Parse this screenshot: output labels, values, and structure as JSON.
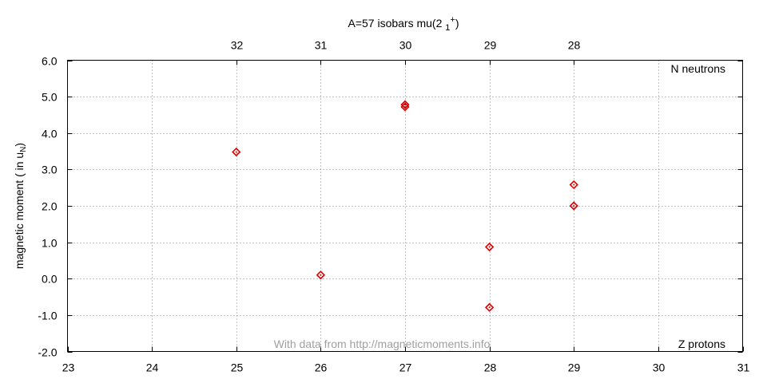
{
  "chart_data": {
    "type": "scatter",
    "title": "A=57 isobars mu(2 ",
    "title_sub": "1",
    "title_sup": "+",
    "title_close": ")",
    "ylabel": "magnetic moment ( in u",
    "ylabel_sub": "N",
    "ylabel_close": ")",
    "x_corner_label": "Z protons",
    "x2_corner_label": "N neutrons",
    "watermark": "With data from http://magneticmoments.info",
    "xlim": [
      23,
      31
    ],
    "ylim": [
      -2.0,
      6.0
    ],
    "x_ticks": [
      23,
      24,
      25,
      26,
      27,
      28,
      29,
      30,
      31
    ],
    "x_tick_labels": [
      "23",
      "24",
      "25",
      "26",
      "27",
      "28",
      "29",
      "30",
      "31"
    ],
    "y_ticks": [
      -2.0,
      -1.0,
      0.0,
      1.0,
      2.0,
      3.0,
      4.0,
      5.0,
      6.0
    ],
    "y_tick_labels": [
      "-2.0",
      "-1.0",
      "0.0",
      "1.0",
      "2.0",
      "3.0",
      "4.0",
      "5.0",
      "6.0"
    ],
    "x2_ticks": [
      25,
      26,
      27,
      28,
      29
    ],
    "x2_tick_labels": [
      "32",
      "31",
      "30",
      "29",
      "28"
    ],
    "grid": true,
    "marker": "diamond",
    "marker_color": "#dd0000",
    "points": [
      {
        "x": 25,
        "y": 3.48
      },
      {
        "x": 26,
        "y": 0.1
      },
      {
        "x": 27,
        "y": 4.72
      },
      {
        "x": 27,
        "y": 4.78
      },
      {
        "x": 28,
        "y": 0.87
      },
      {
        "x": 28,
        "y": -0.79
      },
      {
        "x": 29,
        "y": 2.58
      },
      {
        "x": 29,
        "y": 2.0
      }
    ]
  }
}
